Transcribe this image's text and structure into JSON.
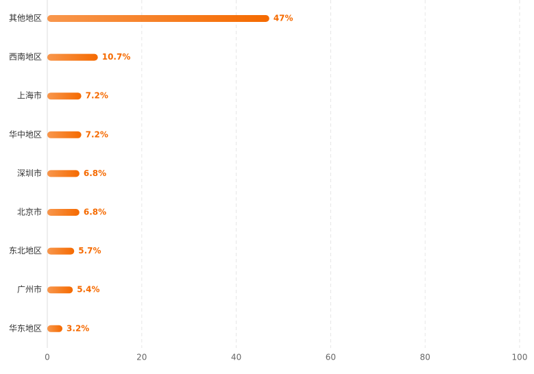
{
  "chart_data": {
    "type": "bar",
    "orientation": "horizontal",
    "categories": [
      "其他地区",
      "西南地区",
      "上海市",
      "华中地区",
      "深圳市",
      "北京市",
      "东北地区",
      "广州市",
      "华东地区"
    ],
    "values": [
      47,
      10.7,
      7.2,
      7.2,
      6.8,
      6.8,
      5.7,
      5.4,
      3.2
    ],
    "value_labels": [
      "47%",
      "10.7%",
      "7.2%",
      "7.2%",
      "6.8%",
      "6.8%",
      "5.7%",
      "5.4%",
      "3.2%"
    ],
    "color": "#f56a00",
    "xlim": [
      0,
      100
    ],
    "xticks": [
      0,
      20,
      40,
      60,
      80,
      100
    ],
    "grid": true
  }
}
